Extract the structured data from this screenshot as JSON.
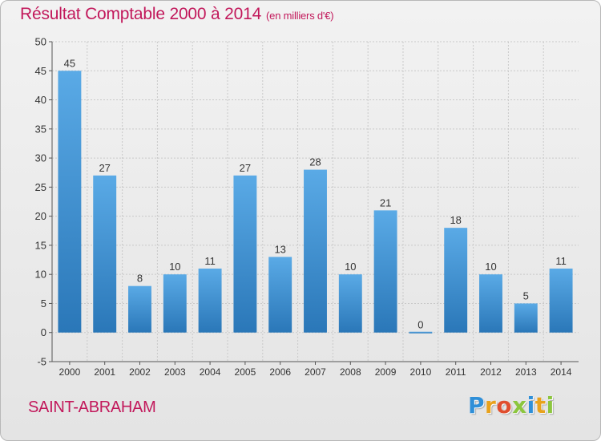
{
  "chart_data": {
    "type": "bar",
    "title": "Résultat Comptable 2000 à 2014",
    "subtitle": "(en milliers d'€)",
    "categories": [
      "2000",
      "2001",
      "2002",
      "2003",
      "2004",
      "2005",
      "2006",
      "2007",
      "2008",
      "2009",
      "2010",
      "2011",
      "2012",
      "2013",
      "2014"
    ],
    "values": [
      45,
      27,
      8,
      10,
      11,
      27,
      13,
      28,
      10,
      21,
      0,
      18,
      10,
      5,
      11
    ],
    "ylim": [
      -5,
      50
    ],
    "yticks": [
      -5,
      0,
      5,
      10,
      15,
      20,
      25,
      30,
      35,
      40,
      45,
      50
    ],
    "xlabel": "",
    "ylabel": "",
    "grid": true,
    "bar_color_top": "#5aaae6",
    "bar_color_bottom": "#2a77b8"
  },
  "footer": {
    "town": "SAINT-ABRAHAM",
    "logo_letters": [
      {
        "char": "P",
        "color": "#2f8fd8"
      },
      {
        "char": "r",
        "color": "#e8a21c"
      },
      {
        "char": "o",
        "color": "#e04e2e"
      },
      {
        "char": "x",
        "color": "#8cc63e"
      },
      {
        "char": "i",
        "color": "#2f8fd8"
      },
      {
        "char": "t",
        "color": "#e8a21c"
      },
      {
        "char": "i",
        "color": "#8cc63e"
      }
    ]
  }
}
